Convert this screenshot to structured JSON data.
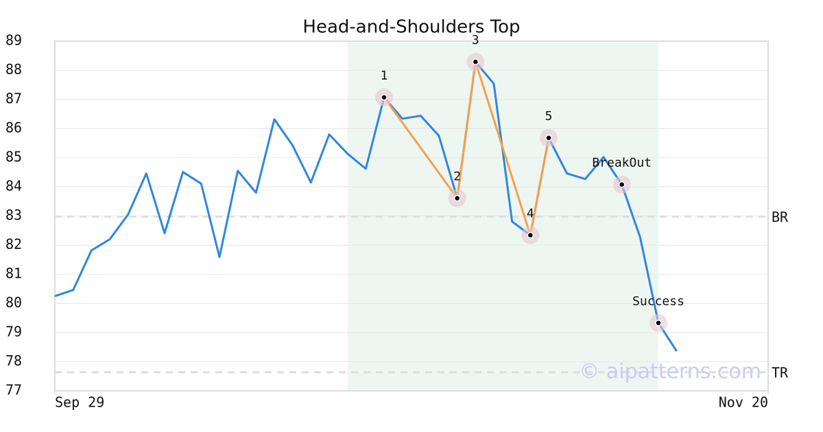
{
  "chart_data": {
    "type": "line",
    "title": "Head-and-Shoulders Top",
    "x": [
      0,
      1,
      2,
      3,
      4,
      5,
      6,
      7,
      8,
      9,
      10,
      11,
      12,
      13,
      14,
      15,
      16,
      17,
      18,
      19,
      20,
      21,
      22,
      23,
      24,
      25,
      26,
      27,
      28,
      29,
      30,
      31,
      32,
      33,
      34
    ],
    "series": [
      {
        "color": "#2e86de",
        "values": [
          80.25,
          80.46,
          81.82,
          82.2,
          83.05,
          84.46,
          82.41,
          84.51,
          84.11,
          81.59,
          84.55,
          83.8,
          86.32,
          85.42,
          84.15,
          85.8,
          85.14,
          84.62,
          87.07,
          86.34,
          86.44,
          85.75,
          83.61,
          88.29,
          87.54,
          82.81,
          82.34,
          85.68,
          84.46,
          84.27,
          85.02,
          84.08,
          82.27,
          79.33,
          78.36
        ]
      }
    ],
    "pattern": {
      "color": "#f5a04a",
      "x": [
        18,
        22,
        23,
        26,
        27
      ],
      "values": [
        87.07,
        83.61,
        88.29,
        82.34,
        85.68
      ]
    },
    "annotations": [
      {
        "label": "1",
        "x": 18,
        "y": 87.07
      },
      {
        "label": "2",
        "x": 22,
        "y": 83.61
      },
      {
        "label": "3",
        "x": 23,
        "y": 88.29
      },
      {
        "label": "4",
        "x": 26,
        "y": 82.34
      },
      {
        "label": "5",
        "x": 27,
        "y": 85.68
      },
      {
        "label": "BreakOut",
        "x": 31,
        "y": 84.08
      },
      {
        "label": "Success",
        "x": 33,
        "y": 79.33
      }
    ],
    "levels": [
      {
        "label": "BR",
        "value": 82.98
      },
      {
        "label": "TR",
        "value": 77.64
      }
    ],
    "highlight": [
      16,
      33
    ],
    "watermark": "© aipatterns.com",
    "xlim": [
      0,
      39
    ],
    "xticks": [
      {
        "value": 0,
        "label": "Sep 29"
      },
      {
        "value": 39,
        "label": "Nov 20"
      }
    ],
    "ylim": [
      77,
      89
    ],
    "yticks": [
      77,
      78,
      79,
      80,
      81,
      82,
      83,
      84,
      85,
      86,
      87,
      88,
      89
    ],
    "grid": true
  }
}
